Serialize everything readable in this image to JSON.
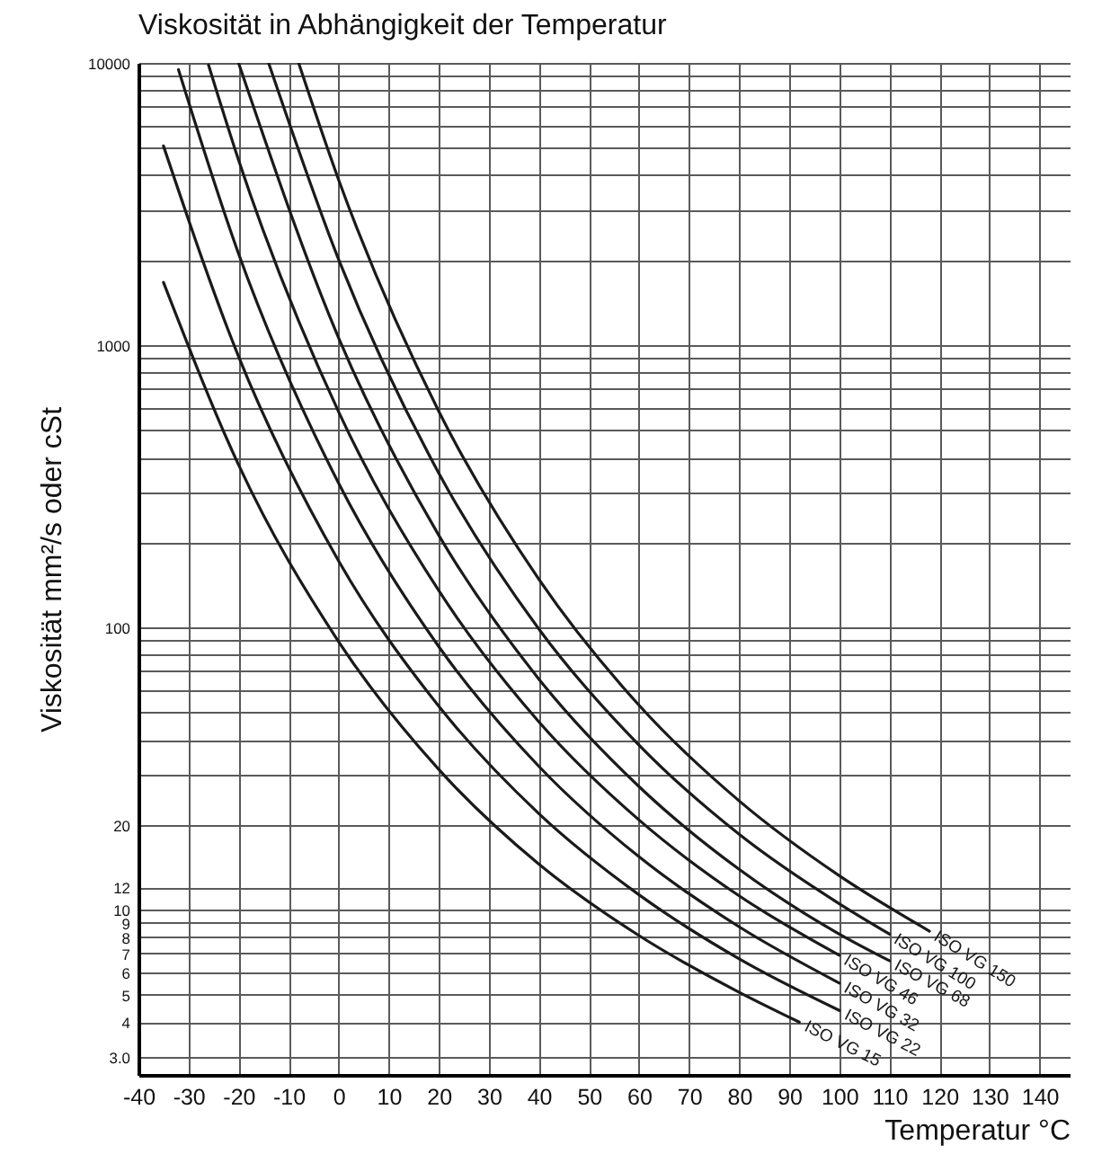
{
  "chart_data": {
    "type": "line",
    "title": "Viskosität in Abhängigkeit der Temperatur",
    "xlabel": "Temperatur °C",
    "ylabel": "Viskosität mm²/s oder cSt",
    "xlim": [
      -40,
      146
    ],
    "xticks": [
      -40,
      -30,
      -20,
      -10,
      0,
      10,
      20,
      30,
      40,
      50,
      60,
      70,
      80,
      90,
      100,
      110,
      120,
      130,
      140
    ],
    "ylim": [
      2.6,
      10000
    ],
    "yticks": [
      {
        "value": 3,
        "label": "3.0"
      },
      4,
      5,
      6,
      7,
      8,
      9,
      10,
      12,
      20,
      {
        "value": 30,
        "label": null
      },
      {
        "value": 40,
        "label": null
      },
      {
        "value": 50,
        "label": null
      },
      {
        "value": 60,
        "label": null
      },
      {
        "value": 70,
        "label": null
      },
      {
        "value": 80,
        "label": null
      },
      {
        "value": 90,
        "label": null
      },
      100,
      {
        "value": 200,
        "label": null
      },
      {
        "value": 300,
        "label": null
      },
      {
        "value": 400,
        "label": null
      },
      {
        "value": 500,
        "label": null
      },
      {
        "value": 600,
        "label": null
      },
      {
        "value": 700,
        "label": null
      },
      {
        "value": 800,
        "label": null
      },
      {
        "value": 900,
        "label": null
      },
      1000,
      {
        "value": 2000,
        "label": null
      },
      {
        "value": 3000,
        "label": null
      },
      {
        "value": 4000,
        "label": null
      },
      {
        "value": 5000,
        "label": null
      },
      {
        "value": 6000,
        "label": null
      },
      {
        "value": 7000,
        "label": null
      },
      {
        "value": 8000,
        "label": null
      },
      {
        "value": 9000,
        "label": null
      },
      10000
    ],
    "log": true,
    "grid": true,
    "series": [
      {
        "name": "ISO VG 15",
        "color": "#1a1a1a",
        "x": [
          -35,
          -20,
          0,
          20,
          40,
          60,
          80,
          92
        ],
        "values": [
          1670,
          377,
          89,
          31.4,
          14.5,
          8.1,
          5.1,
          4.0
        ]
      },
      {
        "name": "ISO VG 22",
        "color": "#1a1a1a",
        "x": [
          -35,
          -20,
          0,
          20,
          40,
          60,
          80,
          100
        ],
        "values": [
          5080,
          912,
          172,
          52.6,
          21.9,
          11.3,
          6.7,
          4.4
        ]
      },
      {
        "name": "ISO VG 32",
        "color": "#1a1a1a",
        "x": [
          -32,
          -20,
          0,
          20,
          40,
          60,
          80,
          100
        ],
        "values": [
          9470,
          2110,
          324,
          85.5,
          32.2,
          15.4,
          8.7,
          5.5
        ]
      },
      {
        "name": "ISO VG 46",
        "color": "#1a1a1a",
        "x": [
          -26,
          -20,
          0,
          20,
          40,
          60,
          80,
          100
        ],
        "values": [
          9840,
          4530,
          580,
          135,
          46.3,
          20.8,
          11.2,
          6.9
        ]
      },
      {
        "name": "ISO VG 68",
        "color": "#1a1a1a",
        "x": [
          -20,
          0,
          20,
          40,
          60,
          80,
          100,
          110
        ],
        "values": [
          10000,
          1060,
          212,
          65.6,
          27.3,
          13.9,
          8.2,
          6.6
        ]
      },
      {
        "name": "ISO VG 100",
        "color": "#1a1a1a",
        "x": [
          -14,
          0,
          20,
          40,
          60,
          80,
          100,
          110
        ],
        "values": [
          10000,
          2010,
          352,
          98.7,
          38.3,
          18.5,
          10.5,
          8.2
        ]
      },
      {
        "name": "ISO VG 150",
        "color": "#1a1a1a",
        "x": [
          -8,
          0,
          20,
          40,
          60,
          80,
          100,
          118
        ],
        "values": [
          10000,
          3850,
          583,
          148,
          53,
          24.3,
          13.2,
          8.4
        ]
      }
    ]
  }
}
